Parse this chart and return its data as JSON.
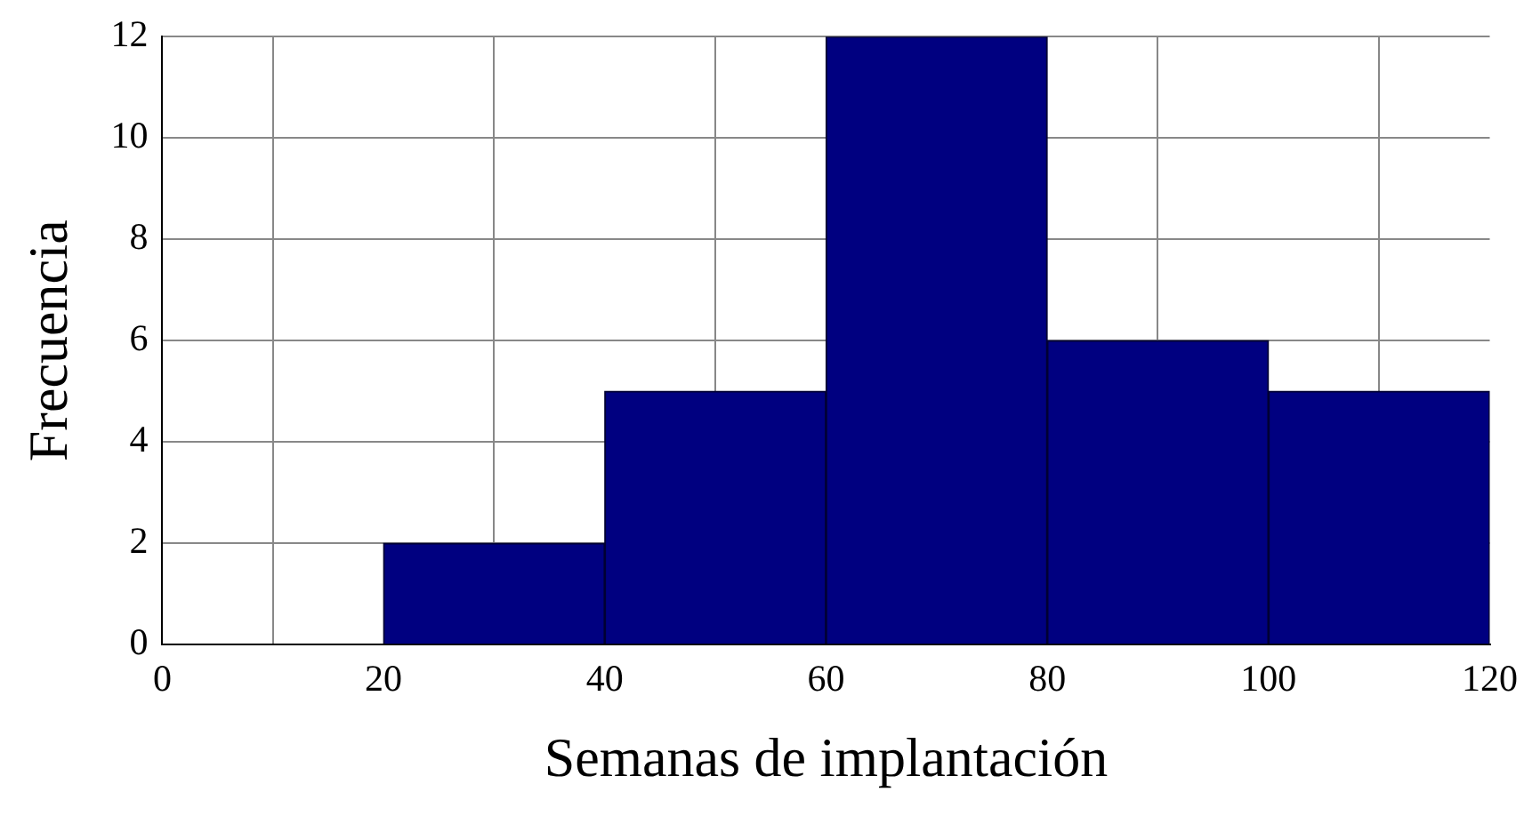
{
  "chart_data": {
    "type": "histogram",
    "xlabel": "Semanas de implantación",
    "ylabel": "Frecuencia",
    "bins": [
      0,
      20,
      40,
      60,
      80,
      100,
      120
    ],
    "values": [
      0,
      2,
      5,
      12,
      6,
      5
    ],
    "color": "#000080",
    "xlim": [
      0,
      120
    ],
    "xticks": [
      0,
      20,
      40,
      60,
      80,
      100,
      120
    ],
    "ylim": [
      0,
      12
    ],
    "yticks": [
      0,
      2,
      4,
      6,
      8,
      10,
      12
    ],
    "grid": true
  }
}
